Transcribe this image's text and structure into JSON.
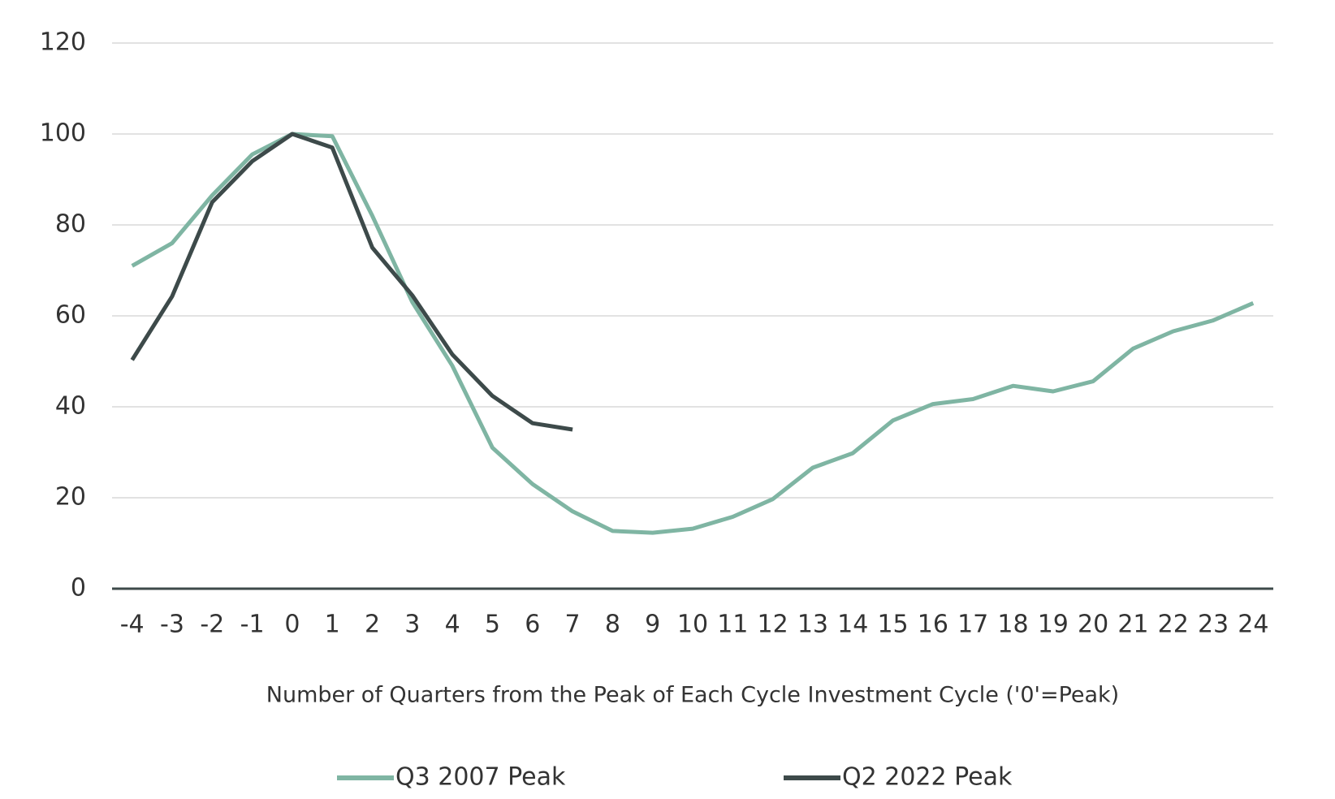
{
  "chart_data": {
    "type": "line",
    "xlabel": "Number of Quarters from the Peak of Each Cycle Investment Cycle ('0'=Peak)",
    "x": [
      -4,
      -3,
      -2,
      -1,
      0,
      1,
      2,
      3,
      4,
      5,
      6,
      7,
      8,
      9,
      10,
      11,
      12,
      13,
      14,
      15,
      16,
      17,
      18,
      19,
      20,
      21,
      22,
      23,
      24
    ],
    "xlim": [
      -4.5,
      24.5
    ],
    "xticks": [
      -4,
      -3,
      -2,
      -1,
      0,
      1,
      2,
      3,
      4,
      5,
      6,
      7,
      8,
      9,
      10,
      11,
      12,
      13,
      14,
      15,
      16,
      17,
      18,
      19,
      20,
      21,
      22,
      23,
      24
    ],
    "ylim": [
      0,
      120
    ],
    "yticks": [
      0,
      20,
      40,
      60,
      80,
      100,
      120
    ],
    "grid": true,
    "legend": "bottom",
    "series": [
      {
        "name": "Q3 2007 Peak",
        "color": "#7fb5a3",
        "values": [
          71,
          76,
          86.5,
          95.5,
          100,
          99.5,
          82,
          63,
          49,
          31,
          23,
          17,
          12.7,
          12.3,
          13.2,
          15.8,
          19.7,
          26.6,
          29.8,
          37,
          40.6,
          41.7,
          44.6,
          43.4,
          45.6,
          52.8,
          56.6,
          59,
          62.8
        ]
      },
      {
        "name": "Q2 2022 Peak",
        "color": "#3d4a4a",
        "values": [
          50.3,
          64.3,
          85,
          94,
          100,
          97,
          75,
          64.5,
          51.5,
          42.4,
          36.4,
          35,
          null,
          null,
          null,
          null,
          null,
          null,
          null,
          null,
          null,
          null,
          null,
          null,
          null,
          null,
          null,
          null,
          null
        ]
      }
    ]
  }
}
